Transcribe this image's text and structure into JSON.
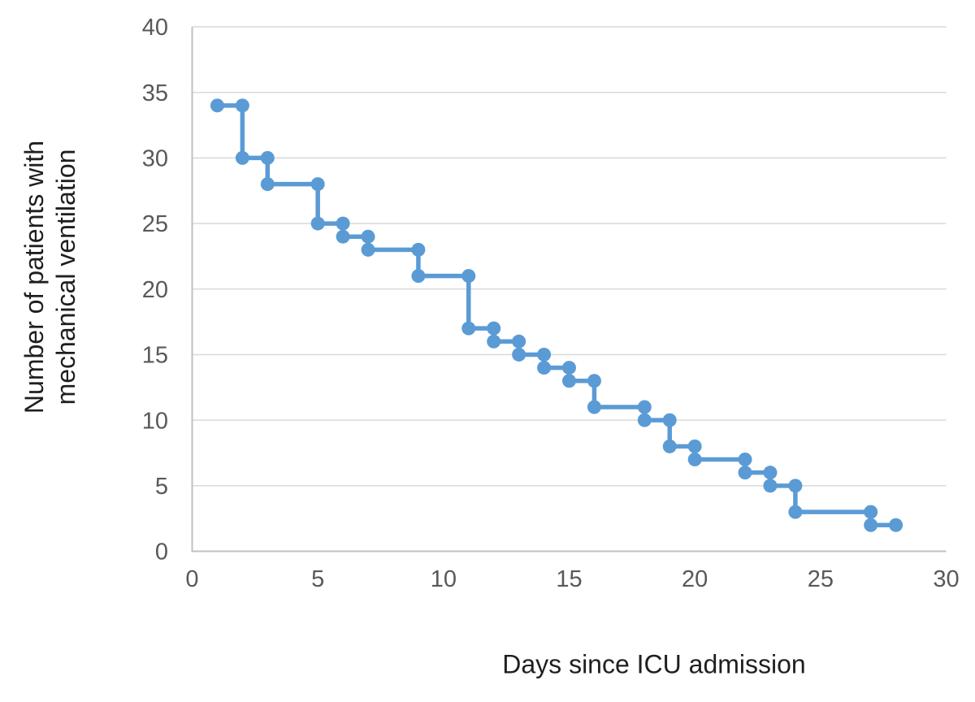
{
  "chart_data": {
    "type": "line",
    "line_style": "step",
    "title": "",
    "xlabel": "Days since ICU admission",
    "ylabel": "Number of patients with mechanical ventilation",
    "ylabel_lines": [
      "Number of patients with",
      "mechanical ventilation"
    ],
    "x": [
      1,
      2,
      2,
      3,
      3,
      5,
      5,
      6,
      6,
      7,
      7,
      9,
      9,
      11,
      11,
      12,
      12,
      13,
      13,
      14,
      14,
      15,
      15,
      16,
      16,
      18,
      18,
      19,
      19,
      20,
      20,
      22,
      22,
      23,
      23,
      24,
      24,
      27,
      27,
      28
    ],
    "y": [
      34,
      34,
      30,
      30,
      28,
      28,
      25,
      25,
      24,
      24,
      23,
      23,
      21,
      21,
      17,
      17,
      16,
      16,
      15,
      15,
      14,
      14,
      13,
      13,
      11,
      11,
      10,
      10,
      8,
      8,
      7,
      7,
      6,
      6,
      5,
      5,
      3,
      3,
      2,
      2
    ],
    "xlim": [
      0,
      30
    ],
    "ylim": [
      0,
      40
    ],
    "xticks": [
      0,
      5,
      10,
      15,
      20,
      25,
      30
    ],
    "yticks": [
      0,
      5,
      10,
      15,
      20,
      25,
      30,
      35,
      40
    ],
    "grid": "horizontal-only",
    "legend": "none",
    "marker": "circle",
    "colors": {
      "series": "#5B9BD5",
      "gridline": "#D9D9D9",
      "axis_line": "#C0C0C0",
      "tick_label": "#595959",
      "axis_title": "#1F1F1F",
      "background": "#FFFFFF"
    }
  }
}
